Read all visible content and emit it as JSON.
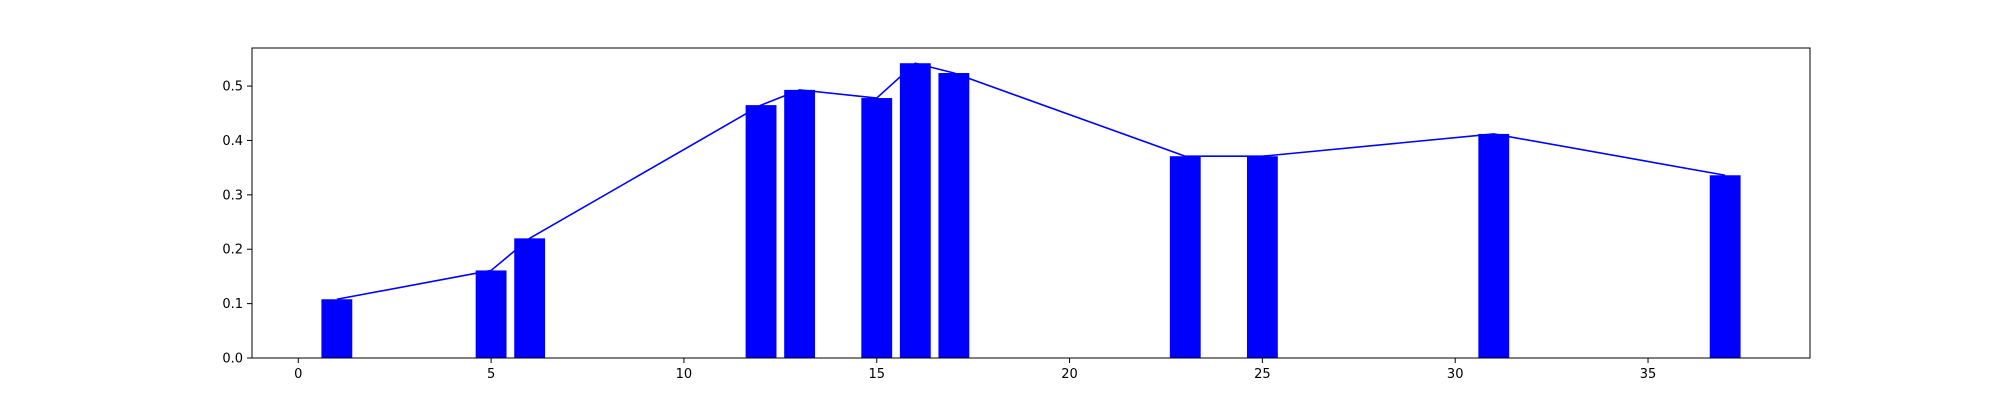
{
  "chart_data": {
    "type": "bar",
    "title": "",
    "xlabel": "",
    "ylabel": "",
    "grid": false,
    "xlim": [
      -1.2,
      39.2
    ],
    "ylim": [
      0,
      0.57
    ],
    "xticks": [
      0,
      5,
      10,
      15,
      20,
      25,
      30,
      35
    ],
    "yticks": [
      0.0,
      0.1,
      0.2,
      0.3,
      0.4,
      0.5
    ],
    "xtick_labels": [
      "0",
      "5",
      "10",
      "15",
      "20",
      "25",
      "30",
      "35"
    ],
    "ytick_labels": [
      "0.0",
      "0.1",
      "0.2",
      "0.3",
      "0.4",
      "0.5"
    ],
    "bar_width": 0.8,
    "x": [
      1,
      5,
      6,
      12,
      13,
      15,
      16,
      17,
      23,
      25,
      31,
      37
    ],
    "values": [
      0.108,
      0.161,
      0.22,
      0.465,
      0.493,
      0.478,
      0.542,
      0.524,
      0.371,
      0.371,
      0.412,
      0.336
    ],
    "line_overlay": true,
    "colors": {
      "bar": "#0000ff",
      "line": "#0000ff",
      "axes": "#000000"
    }
  }
}
